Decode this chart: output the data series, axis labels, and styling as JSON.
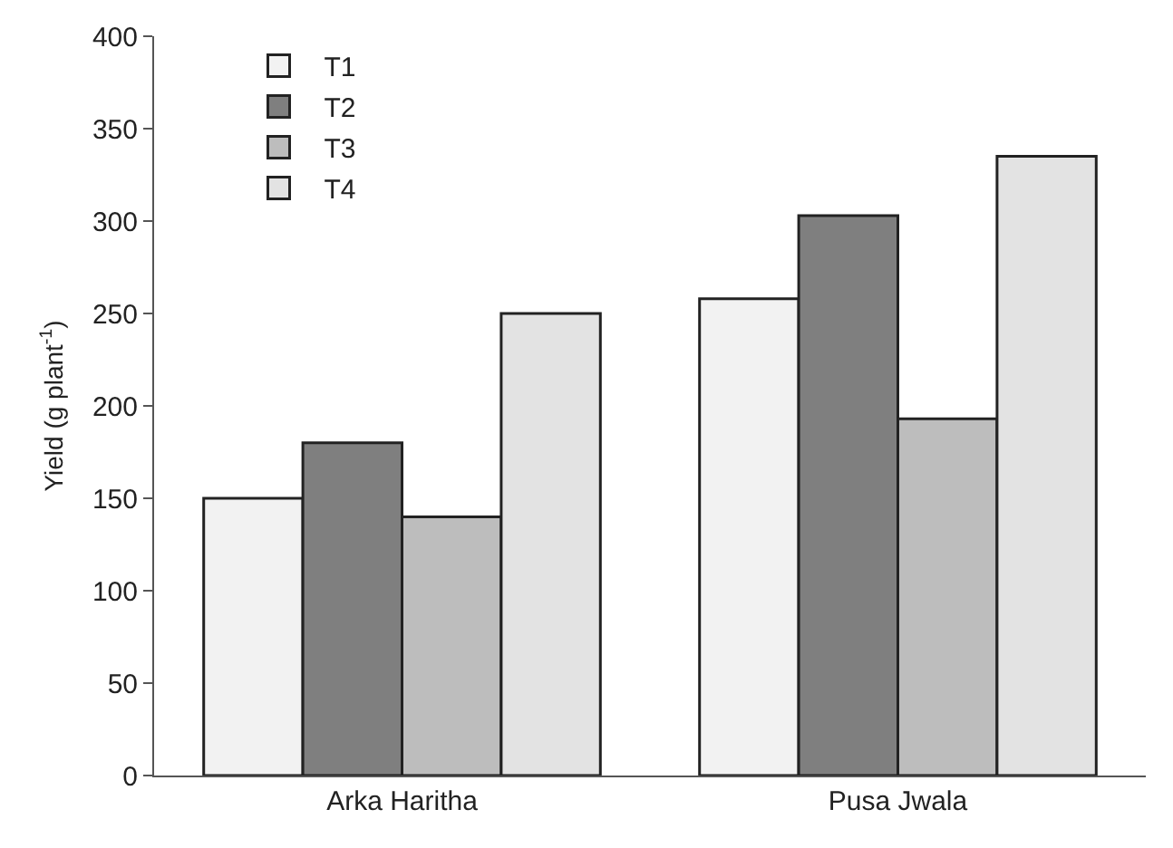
{
  "chart_data": {
    "type": "bar",
    "ylabel": "Yield (g plant$^{-1}$)",
    "categories": [
      "Arka Haritha",
      "Pusa Jwala"
    ],
    "series": [
      {
        "name": "T1",
        "color": "#f2f2f2",
        "values": [
          150,
          258
        ]
      },
      {
        "name": "T2",
        "color": "#7f7f7f",
        "values": [
          180,
          303
        ]
      },
      {
        "name": "T3",
        "color": "#bdbdbd",
        "values": [
          140,
          193
        ]
      },
      {
        "name": "T4",
        "color": "#e3e3e3",
        "values": [
          250,
          335
        ]
      }
    ],
    "ylim": [
      0,
      400
    ],
    "yticks": [
      0,
      50,
      100,
      150,
      200,
      250,
      300,
      350,
      400
    ],
    "grid": false,
    "legend": "top left"
  }
}
